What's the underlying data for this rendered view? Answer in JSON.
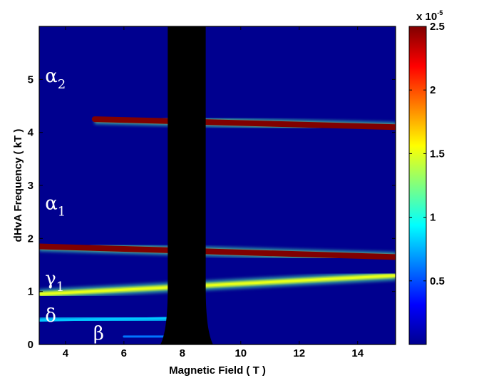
{
  "chart_data": {
    "type": "heatmap",
    "title": "",
    "xlabel": "Magnetic Field ( T )",
    "ylabel": "dHvA Frequency ( kT )",
    "xlim": [
      3.1,
      15.3
    ],
    "ylim": [
      0,
      6.0
    ],
    "xticks": [
      4,
      6,
      8,
      10,
      12,
      14
    ],
    "yticks": [
      0,
      1,
      2,
      3,
      4,
      5
    ],
    "colormap": "jet",
    "colorbar": {
      "range": [
        0,
        2.5
      ],
      "ticks": [
        0.5,
        1,
        1.5,
        2,
        2.5
      ],
      "tick_labels": [
        "0.5",
        "1",
        "1.5",
        "2",
        "2.5"
      ],
      "multiplier_text": "x 10",
      "multiplier_exponent": "-5"
    },
    "masked_region": {
      "field_range": [
        7.5,
        8.8
      ],
      "color": "#000000"
    },
    "bands": [
      {
        "label": "α",
        "subscript": "2",
        "field_range": [
          5.0,
          15.3
        ],
        "frequency_kT": [
          4.25,
          4.1
        ],
        "peak_value": 2.5
      },
      {
        "label": "α",
        "subscript": "1",
        "field_range": [
          3.1,
          15.3
        ],
        "frequency_kT": [
          1.85,
          1.65
        ],
        "peak_value": 2.5
      },
      {
        "label": "γ",
        "subscript": "1",
        "field_range": [
          3.1,
          15.3
        ],
        "frequency_kT": [
          0.95,
          1.3
        ],
        "peak_value": 1.5
      },
      {
        "label": "δ",
        "subscript": "",
        "field_range": [
          3.1,
          7.5
        ],
        "frequency_kT": [
          0.45,
          0.5
        ],
        "peak_value": 0.8
      },
      {
        "label": "β",
        "subscript": "",
        "field_range": [
          6.0,
          7.5
        ],
        "frequency_kT": [
          0.15,
          0.15
        ],
        "peak_value": 0.6
      }
    ],
    "colors": {
      "background": "#00008f",
      "peak": "#7f0000",
      "mask": "#000000"
    }
  }
}
